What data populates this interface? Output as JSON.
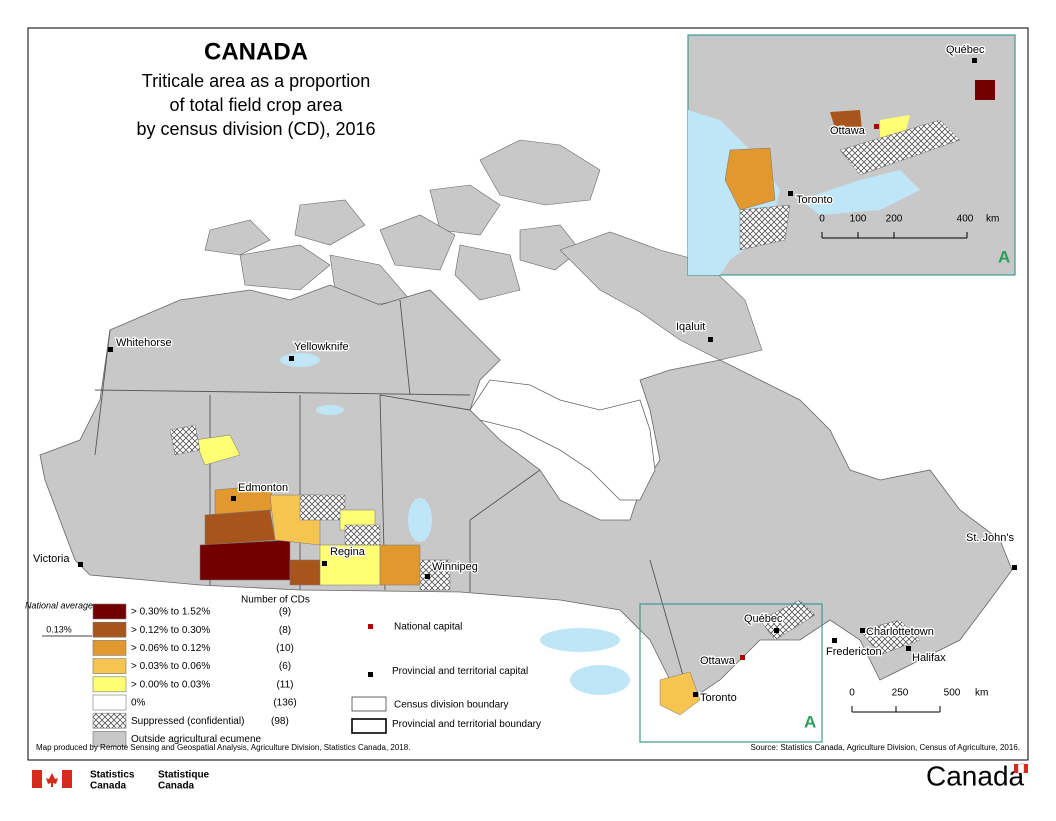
{
  "title": "CANADA",
  "subtitle": [
    "Triticale area as a proportion",
    "of total field crop area",
    "by census division (CD), 2016"
  ],
  "legend": {
    "national_average_label": "National average",
    "national_average_value": "0.13%",
    "count_header": "Number of CDs",
    "classes": [
      {
        "label": "> 0.30% to 1.52%",
        "count": "(9)",
        "color": "#730000"
      },
      {
        "label": "> 0.12% to 0.30%",
        "count": "(8)",
        "color": "#a8551c"
      },
      {
        "label": "> 0.06% to 0.12%",
        "count": "(10)",
        "color": "#e0982f"
      },
      {
        "label": "> 0.03% to 0.06%",
        "count": "(6)",
        "color": "#f5c451"
      },
      {
        "label": "> 0.00% to 0.03%",
        "count": "(11)",
        "color": "#ffff73"
      },
      {
        "label": "0%",
        "count": "(136)",
        "color": "#ffffff"
      },
      {
        "label": "Suppressed (confidential)",
        "count": "(98)",
        "color": "#ffffff",
        "pattern": "crosshatch"
      },
      {
        "label": "Outside agricultural ecumene",
        "color": "#c8c8c8"
      }
    ],
    "symbols": {
      "national_capital": "National capital",
      "provincial_capital": "Provincial and territorial capital",
      "cd_boundary": "Census division boundary",
      "provincial_boundary": "Provincial and territorial boundary"
    }
  },
  "cities": {
    "whitehorse": "Whitehorse",
    "yellowknife": "Yellowknife",
    "iqaluit": "Iqaluit",
    "edmonton": "Edmonton",
    "regina": "Regina",
    "winnipeg": "Winnipeg",
    "victoria": "Victoria",
    "quebec": "Québec",
    "ottawa": "Ottawa",
    "toronto": "Toronto",
    "charlottetown": "Charlottetown",
    "fredericton": "Fredericton",
    "halifax": "Halifax",
    "st_johns": "St. John's"
  },
  "scale": {
    "ticks": [
      "0",
      "250",
      "500"
    ],
    "unit": "km"
  },
  "inset": {
    "label": "A",
    "scale_ticks": [
      "0",
      "100",
      "200",
      "400"
    ],
    "unit": "km"
  },
  "credits": {
    "produced_by": "Map produced by Remote Sensing and Geospatial Analysis, Agriculture Division, Statistics Canada, 2018.",
    "source": "Source: Statistics Canada, Agriculture Division, Census of Agriculture, 2016."
  },
  "logos": {
    "statcan_en": [
      "Statistics",
      "Canada"
    ],
    "statcan_fr": [
      "Statistique",
      "Canada"
    ],
    "wordmark": "Canada"
  }
}
